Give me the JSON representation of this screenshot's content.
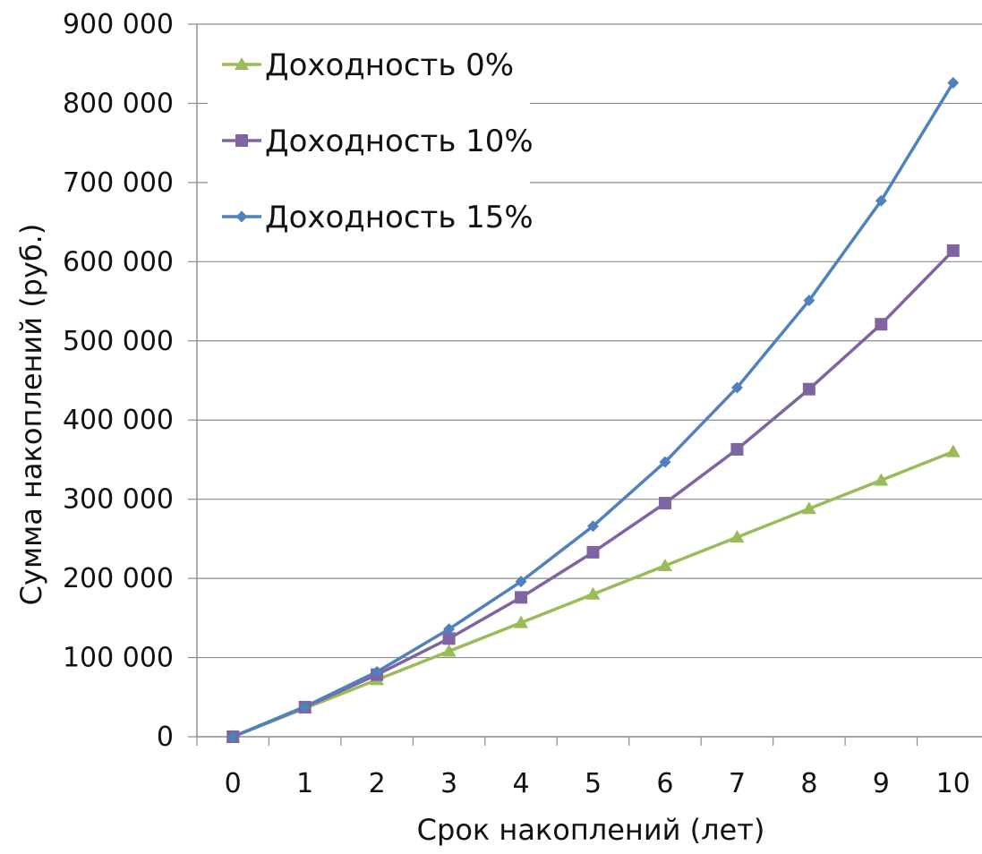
{
  "chart_data": {
    "type": "line",
    "title": "",
    "xlabel": "Срок накоплений (лет)",
    "ylabel": "Сумма накоплений (руб.)",
    "x": [
      0,
      1,
      2,
      3,
      4,
      5,
      6,
      7,
      8,
      9,
      10
    ],
    "x_tick_labels": [
      "0",
      "1",
      "2",
      "3",
      "4",
      "5",
      "6",
      "7",
      "8",
      "9",
      "10"
    ],
    "ylim": [
      0,
      900000
    ],
    "y_ticks": [
      0,
      100000,
      200000,
      300000,
      400000,
      500000,
      600000,
      700000,
      800000,
      900000
    ],
    "y_tick_labels": [
      "0",
      "100 000",
      "200 000",
      "300 000",
      "400 000",
      "500 000",
      "600 000",
      "700 000",
      "800 000",
      "900 000"
    ],
    "grid": "horizontal",
    "legend_position": "top-left",
    "series": [
      {
        "name": "Доходность 0%",
        "color": "#9BBB59",
        "marker": "triangle",
        "values": [
          0,
          36000,
          72000,
          108000,
          144000,
          180000,
          216000,
          252000,
          288000,
          324000,
          360000
        ]
      },
      {
        "name": "Доходность 10%",
        "color": "#8064A2",
        "marker": "square",
        "values": [
          0,
          37400,
          78400,
          124000,
          176000,
          233000,
          295000,
          363000,
          439000,
          521000,
          614000
        ]
      },
      {
        "name": "Доходность 15%",
        "color": "#4F81BD",
        "marker": "diamond",
        "values": [
          0,
          38000,
          82000,
          136000,
          196000,
          266000,
          347000,
          441000,
          551000,
          677000,
          826000
        ]
      }
    ]
  }
}
